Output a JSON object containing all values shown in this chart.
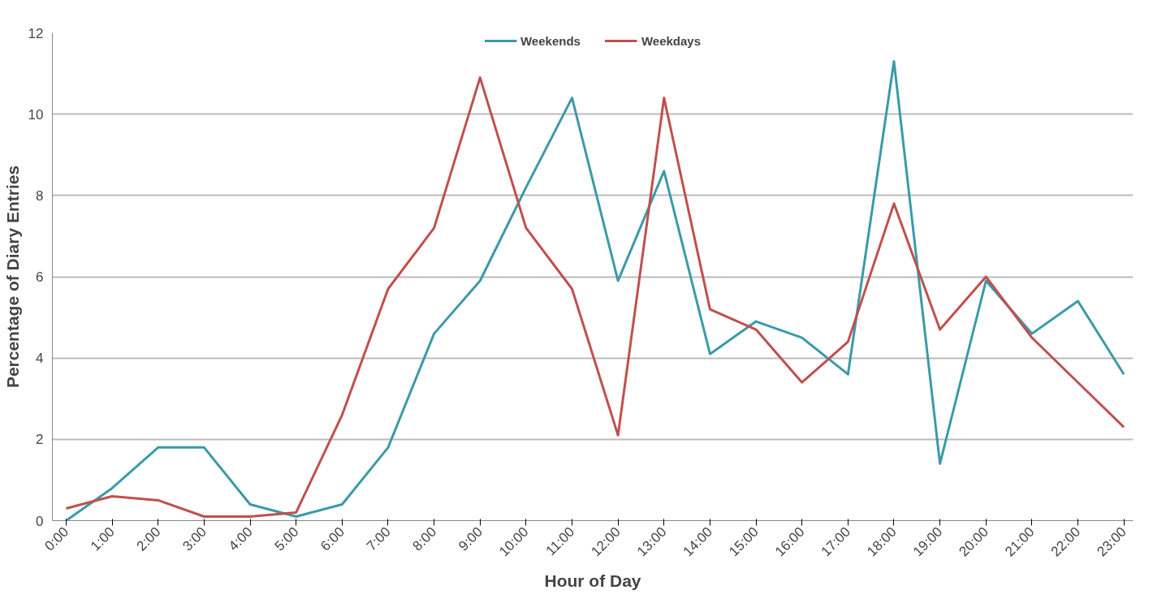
{
  "chart_data": {
    "type": "line",
    "xlabel": "Hour of Day",
    "ylabel": "Percentage of Diary Entries",
    "categories": [
      "0:00",
      "1:00",
      "2:00",
      "3:00",
      "4:00",
      "5:00",
      "6:00",
      "7:00",
      "8:00",
      "9:00",
      "10:00",
      "11:00",
      "12:00",
      "13:00",
      "14:00",
      "15:00",
      "16:00",
      "17:00",
      "18:00",
      "19:00",
      "20:00",
      "21:00",
      "22:00",
      "23:00"
    ],
    "series": [
      {
        "name": "Weekends",
        "color": "#3b9aa8",
        "values": [
          0,
          0.8,
          1.8,
          1.8,
          0.4,
          0.1,
          0.4,
          1.8,
          4.6,
          5.9,
          8.2,
          10.4,
          5.9,
          8.6,
          4.1,
          4.9,
          4.5,
          3.6,
          11.3,
          1.4,
          5.9,
          4.6,
          5.4,
          3.6
        ]
      },
      {
        "name": "Weekdays",
        "color": "#c0504d",
        "values": [
          0.3,
          0.6,
          0.5,
          0.1,
          0.1,
          0.2,
          2.6,
          5.7,
          7.2,
          10.9,
          7.2,
          5.7,
          2.1,
          10.4,
          5.2,
          4.7,
          3.4,
          4.4,
          7.8,
          4.7,
          6.0,
          4.5,
          3.4,
          2.3
        ]
      }
    ],
    "ylim": [
      0,
      12
    ],
    "yticks": [
      0,
      2,
      4,
      6,
      8,
      10,
      12
    ],
    "grid": "y",
    "legend": "top",
    "marker": "none",
    "line_style": "solid"
  }
}
